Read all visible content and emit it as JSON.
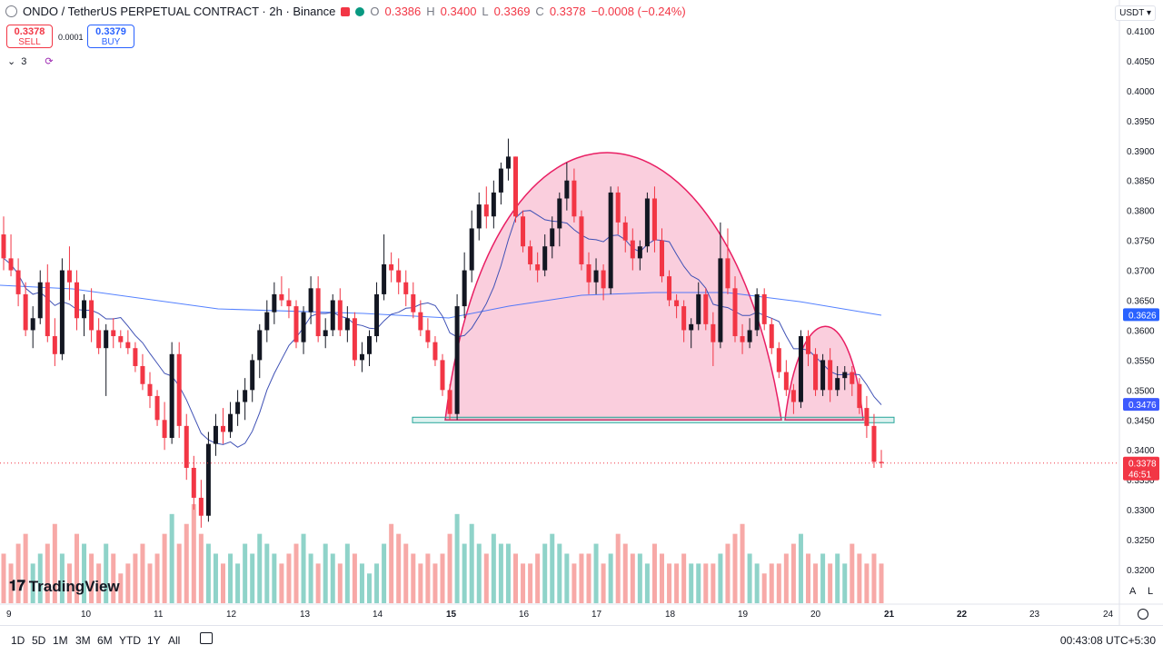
{
  "header": {
    "symbol": "ONDO / TetherUS PERPETUAL CONTRACT · 2h · Binance",
    "o_label": "O",
    "o_value": "0.3386",
    "h_label": "H",
    "h_value": "0.3400",
    "l_label": "L",
    "l_value": "0.3369",
    "c_label": "C",
    "c_value": "0.3378",
    "change": "−0.0008 (−0.24%)"
  },
  "trade": {
    "sell_price": "0.3378",
    "sell_label": "SELL",
    "spread": "0.0001",
    "buy_price": "0.3379",
    "buy_label": "BUY"
  },
  "indicators": {
    "count": "3"
  },
  "currency_button": "USDT ▾",
  "brand": "TradingView",
  "price_labels": {
    "ma_long": "0.3626",
    "ma_short": "0.3476",
    "last_price": "0.3378",
    "countdown": "46:51"
  },
  "toolbar": {
    "ranges": [
      "1D",
      "5D",
      "1M",
      "3M",
      "6M",
      "YTD",
      "1Y",
      "All"
    ],
    "clock": "00:43:08 UTC+5:30",
    "auto": "A",
    "log": "L"
  },
  "colors": {
    "up": "#089981",
    "down": "#f23645",
    "ma": "#2962ff",
    "pattern": "#e91e63"
  },
  "chart_data": {
    "type": "candlestick",
    "title": "ONDO / TetherUS PERPETUAL CONTRACT · 2h · Binance",
    "x_ticks": [
      "9",
      "10",
      "11",
      "12",
      "13",
      "14",
      "15",
      "16",
      "17",
      "18",
      "19",
      "20",
      "21",
      "22",
      "23",
      "24"
    ],
    "y_ticks": [
      "0.4100",
      "0.4050",
      "0.4000",
      "0.3950",
      "0.3900",
      "0.3850",
      "0.3800",
      "0.3750",
      "0.3700",
      "0.3650",
      "0.3600",
      "0.3550",
      "0.3500",
      "0.3450",
      "0.3400",
      "0.3350",
      "0.3300",
      "0.3250",
      "0.3200"
    ],
    "ylim": [
      0.315,
      0.413
    ],
    "ohlc": [
      [
        0.376,
        0.379,
        0.37,
        0.372
      ],
      [
        0.372,
        0.376,
        0.369,
        0.37
      ],
      [
        0.37,
        0.372,
        0.364,
        0.366
      ],
      [
        0.366,
        0.368,
        0.359,
        0.36
      ],
      [
        0.36,
        0.364,
        0.357,
        0.362
      ],
      [
        0.362,
        0.37,
        0.361,
        0.368
      ],
      [
        0.368,
        0.371,
        0.358,
        0.359
      ],
      [
        0.359,
        0.362,
        0.354,
        0.356
      ],
      [
        0.356,
        0.372,
        0.355,
        0.37
      ],
      [
        0.37,
        0.374,
        0.365,
        0.368
      ],
      [
        0.368,
        0.37,
        0.36,
        0.362
      ],
      [
        0.362,
        0.366,
        0.359,
        0.365
      ],
      [
        0.365,
        0.367,
        0.358,
        0.36
      ],
      [
        0.36,
        0.362,
        0.356,
        0.357
      ],
      [
        0.357,
        0.361,
        0.349,
        0.36
      ],
      [
        0.36,
        0.362,
        0.357,
        0.359
      ],
      [
        0.359,
        0.36,
        0.357,
        0.358
      ],
      [
        0.358,
        0.36,
        0.356,
        0.357
      ],
      [
        0.357,
        0.358,
        0.353,
        0.354
      ],
      [
        0.354,
        0.356,
        0.35,
        0.351
      ],
      [
        0.351,
        0.353,
        0.347,
        0.349
      ],
      [
        0.349,
        0.35,
        0.344,
        0.345
      ],
      [
        0.345,
        0.348,
        0.34,
        0.342
      ],
      [
        0.342,
        0.358,
        0.341,
        0.356
      ],
      [
        0.356,
        0.358,
        0.342,
        0.344
      ],
      [
        0.344,
        0.346,
        0.335,
        0.337
      ],
      [
        0.337,
        0.339,
        0.33,
        0.332
      ],
      [
        0.332,
        0.335,
        0.327,
        0.329
      ],
      [
        0.329,
        0.343,
        0.328,
        0.341
      ],
      [
        0.341,
        0.346,
        0.339,
        0.344
      ],
      [
        0.344,
        0.347,
        0.341,
        0.343
      ],
      [
        0.343,
        0.348,
        0.342,
        0.346
      ],
      [
        0.346,
        0.35,
        0.344,
        0.348
      ],
      [
        0.348,
        0.352,
        0.345,
        0.35
      ],
      [
        0.35,
        0.356,
        0.348,
        0.355
      ],
      [
        0.355,
        0.361,
        0.352,
        0.36
      ],
      [
        0.36,
        0.365,
        0.358,
        0.363
      ],
      [
        0.363,
        0.368,
        0.361,
        0.366
      ],
      [
        0.366,
        0.369,
        0.364,
        0.365
      ],
      [
        0.365,
        0.367,
        0.362,
        0.364
      ],
      [
        0.364,
        0.365,
        0.357,
        0.358
      ],
      [
        0.358,
        0.364,
        0.356,
        0.363
      ],
      [
        0.363,
        0.369,
        0.361,
        0.367
      ],
      [
        0.367,
        0.369,
        0.358,
        0.359
      ],
      [
        0.359,
        0.362,
        0.357,
        0.36
      ],
      [
        0.36,
        0.366,
        0.359,
        0.365
      ],
      [
        0.365,
        0.367,
        0.359,
        0.36
      ],
      [
        0.36,
        0.364,
        0.358,
        0.362
      ],
      [
        0.362,
        0.363,
        0.354,
        0.355
      ],
      [
        0.355,
        0.358,
        0.353,
        0.356
      ],
      [
        0.356,
        0.36,
        0.354,
        0.359
      ],
      [
        0.359,
        0.368,
        0.358,
        0.366
      ],
      [
        0.366,
        0.376,
        0.365,
        0.371
      ],
      [
        0.371,
        0.373,
        0.368,
        0.37
      ],
      [
        0.37,
        0.372,
        0.366,
        0.368
      ],
      [
        0.368,
        0.37,
        0.364,
        0.366
      ],
      [
        0.366,
        0.368,
        0.362,
        0.363
      ],
      [
        0.363,
        0.365,
        0.359,
        0.36
      ],
      [
        0.36,
        0.362,
        0.357,
        0.358
      ],
      [
        0.358,
        0.359,
        0.354,
        0.355
      ],
      [
        0.355,
        0.356,
        0.349,
        0.35
      ],
      [
        0.35,
        0.351,
        0.345,
        0.346
      ],
      [
        0.346,
        0.366,
        0.345,
        0.364
      ],
      [
        0.364,
        0.373,
        0.362,
        0.37
      ],
      [
        0.37,
        0.38,
        0.368,
        0.377
      ],
      [
        0.377,
        0.383,
        0.375,
        0.381
      ],
      [
        0.381,
        0.384,
        0.377,
        0.379
      ],
      [
        0.379,
        0.385,
        0.377,
        0.383
      ],
      [
        0.383,
        0.388,
        0.381,
        0.387
      ],
      [
        0.387,
        0.392,
        0.385,
        0.389
      ],
      [
        0.389,
        0.389,
        0.378,
        0.379
      ],
      [
        0.379,
        0.38,
        0.373,
        0.374
      ],
      [
        0.374,
        0.375,
        0.37,
        0.371
      ],
      [
        0.371,
        0.373,
        0.368,
        0.37
      ],
      [
        0.37,
        0.376,
        0.369,
        0.374
      ],
      [
        0.374,
        0.379,
        0.372,
        0.377
      ],
      [
        0.377,
        0.383,
        0.374,
        0.382
      ],
      [
        0.382,
        0.388,
        0.38,
        0.385
      ],
      [
        0.385,
        0.387,
        0.378,
        0.379
      ],
      [
        0.379,
        0.38,
        0.37,
        0.371
      ],
      [
        0.371,
        0.373,
        0.366,
        0.368
      ],
      [
        0.368,
        0.372,
        0.366,
        0.37
      ],
      [
        0.37,
        0.371,
        0.365,
        0.367
      ],
      [
        0.367,
        0.384,
        0.366,
        0.383
      ],
      [
        0.383,
        0.384,
        0.376,
        0.378
      ],
      [
        0.378,
        0.379,
        0.373,
        0.375
      ],
      [
        0.375,
        0.377,
        0.37,
        0.372
      ],
      [
        0.372,
        0.375,
        0.37,
        0.374
      ],
      [
        0.374,
        0.383,
        0.373,
        0.382
      ],
      [
        0.382,
        0.384,
        0.373,
        0.375
      ],
      [
        0.375,
        0.377,
        0.368,
        0.369
      ],
      [
        0.369,
        0.37,
        0.364,
        0.365
      ],
      [
        0.365,
        0.366,
        0.362,
        0.364
      ],
      [
        0.364,
        0.365,
        0.358,
        0.36
      ],
      [
        0.36,
        0.362,
        0.357,
        0.361
      ],
      [
        0.361,
        0.368,
        0.36,
        0.366
      ],
      [
        0.366,
        0.367,
        0.36,
        0.361
      ],
      [
        0.361,
        0.363,
        0.354,
        0.358
      ],
      [
        0.358,
        0.378,
        0.357,
        0.372
      ],
      [
        0.372,
        0.377,
        0.366,
        0.367
      ],
      [
        0.367,
        0.369,
        0.358,
        0.359
      ],
      [
        0.359,
        0.361,
        0.356,
        0.358
      ],
      [
        0.358,
        0.362,
        0.357,
        0.36
      ],
      [
        0.36,
        0.367,
        0.359,
        0.366
      ],
      [
        0.366,
        0.367,
        0.36,
        0.361
      ],
      [
        0.361,
        0.362,
        0.356,
        0.357
      ],
      [
        0.357,
        0.358,
        0.352,
        0.353
      ],
      [
        0.353,
        0.355,
        0.349,
        0.35
      ],
      [
        0.35,
        0.351,
        0.346,
        0.348
      ],
      [
        0.348,
        0.36,
        0.347,
        0.359
      ],
      [
        0.359,
        0.36,
        0.354,
        0.356
      ],
      [
        0.356,
        0.357,
        0.349,
        0.35
      ],
      [
        0.35,
        0.356,
        0.349,
        0.355
      ],
      [
        0.355,
        0.357,
        0.348,
        0.35
      ],
      [
        0.35,
        0.354,
        0.349,
        0.352
      ],
      [
        0.352,
        0.354,
        0.35,
        0.353
      ],
      [
        0.353,
        0.354,
        0.349,
        0.351
      ],
      [
        0.351,
        0.352,
        0.346,
        0.347
      ],
      [
        0.347,
        0.349,
        0.342,
        0.344
      ],
      [
        0.344,
        0.346,
        0.337,
        0.338
      ],
      [
        0.338,
        0.34,
        0.337,
        0.3378
      ]
    ],
    "volume": [
      5,
      4,
      6,
      7,
      4,
      5,
      6,
      8,
      5,
      4,
      7,
      6,
      5,
      4,
      6,
      5,
      3,
      4,
      5,
      6,
      4,
      5,
      7,
      9,
      6,
      8,
      10,
      7,
      6,
      5,
      4,
      5,
      4,
      6,
      5,
      7,
      6,
      5,
      4,
      5,
      6,
      7,
      5,
      4,
      6,
      5,
      4,
      6,
      5,
      4,
      3,
      4,
      6,
      8,
      7,
      6,
      5,
      4,
      5,
      4,
      5,
      7,
      9,
      6,
      8,
      6,
      5,
      7,
      6,
      6,
      5,
      4,
      4,
      5,
      6,
      7,
      6,
      5,
      4,
      5,
      5,
      6,
      4,
      5,
      7,
      6,
      5,
      5,
      4,
      6,
      5,
      4,
      4,
      5,
      4,
      4,
      4,
      4,
      5,
      6,
      7,
      8,
      5,
      4,
      3,
      4,
      4,
      5,
      6,
      7,
      5,
      4,
      5,
      4,
      5,
      4,
      6,
      5,
      4,
      5,
      4
    ],
    "ma_long": [
      0.366,
      0.365,
      0.364,
      0.3625
    ],
    "ma_short_last": 0.3476,
    "neckline": 0.345,
    "last_price": 0.3378
  }
}
